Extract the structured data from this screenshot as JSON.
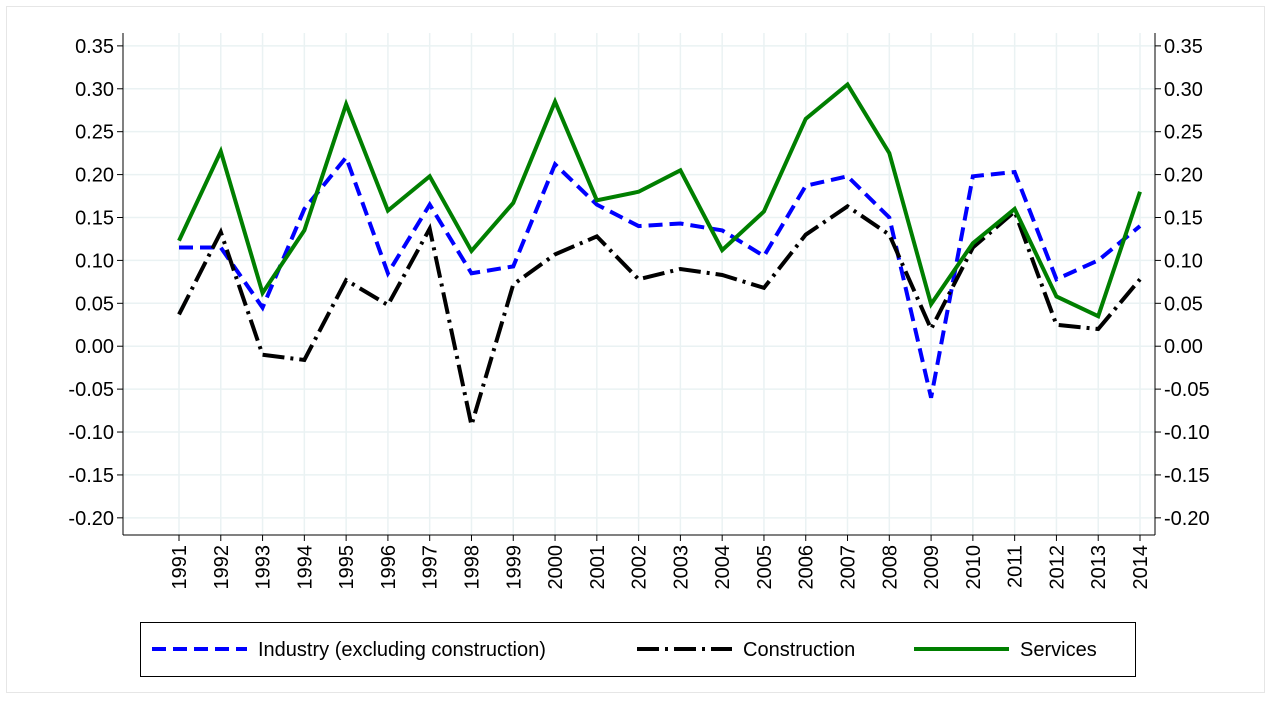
{
  "chart_data": {
    "type": "line",
    "categories": [
      "1991",
      "1992",
      "1993",
      "1994",
      "1995",
      "1996",
      "1997",
      "1998",
      "1999",
      "2000",
      "2001",
      "2002",
      "2003",
      "2004",
      "2005",
      "2006",
      "2007",
      "2008",
      "2009",
      "2010",
      "2011",
      "2012",
      "2013",
      "2014"
    ],
    "series": [
      {
        "name": "Industry (excluding construction)",
        "color": "#0000ff",
        "dash": "dashed",
        "values": [
          0.115,
          0.115,
          0.045,
          0.16,
          0.22,
          0.085,
          0.165,
          0.085,
          0.093,
          0.212,
          0.165,
          0.14,
          0.143,
          0.135,
          0.105,
          0.187,
          0.198,
          0.15,
          -0.06,
          0.198,
          0.203,
          0.078,
          0.1,
          0.14
        ]
      },
      {
        "name": "Construction",
        "color": "#000000",
        "dash": "dashdot",
        "values": [
          0.037,
          0.133,
          -0.01,
          -0.016,
          0.077,
          0.048,
          0.137,
          -0.092,
          0.072,
          0.107,
          0.128,
          0.078,
          0.09,
          0.083,
          0.068,
          0.13,
          0.163,
          0.13,
          0.02,
          0.115,
          0.157,
          0.025,
          0.02,
          0.078
        ]
      },
      {
        "name": "Services",
        "color": "#007f00",
        "dash": "solid",
        "values": [
          0.123,
          0.227,
          0.062,
          0.135,
          0.282,
          0.158,
          0.198,
          0.111,
          0.167,
          0.285,
          0.17,
          0.18,
          0.205,
          0.112,
          0.157,
          0.265,
          0.305,
          0.225,
          0.049,
          0.12,
          0.16,
          0.058,
          0.035,
          0.18
        ]
      }
    ],
    "ylim": [
      -0.22,
      0.365
    ],
    "yticks": [
      {
        "value": 0.35,
        "label": "0.35"
      },
      {
        "value": 0.3,
        "label": "0.30"
      },
      {
        "value": 0.25,
        "label": "0.25"
      },
      {
        "value": 0.2,
        "label": "0.20"
      },
      {
        "value": 0.15,
        "label": "0.15"
      },
      {
        "value": 0.1,
        "label": "0.10"
      },
      {
        "value": 0.05,
        "label": "0.05"
      },
      {
        "value": 0,
        "label": "0.00"
      },
      {
        "value": -0.05,
        "label": "-0.05"
      },
      {
        "value": -0.1,
        "label": "-0.10"
      },
      {
        "value": -0.15,
        "label": "-0.15"
      },
      {
        "value": -0.2,
        "label": "-0.20"
      }
    ],
    "y2lim": [
      -0.22,
      0.365
    ],
    "y2ticks": [
      {
        "value": 0.35,
        "label": "0.35"
      },
      {
        "value": 0.3,
        "label": "0.30"
      },
      {
        "value": 0.25,
        "label": "0.25"
      },
      {
        "value": 0.2,
        "label": "0.20"
      },
      {
        "value": 0.15,
        "label": "0.15"
      },
      {
        "value": 0.1,
        "label": "0.10"
      },
      {
        "value": 0.05,
        "label": "0.05"
      },
      {
        "value": 0,
        "label": "0.00"
      },
      {
        "value": -0.05,
        "label": "-0.05"
      },
      {
        "value": -0.1,
        "label": "-0.10"
      },
      {
        "value": -0.15,
        "label": "-0.15"
      },
      {
        "value": -0.2,
        "label": "-0.20"
      }
    ],
    "grid": true,
    "legend": "bottom"
  }
}
